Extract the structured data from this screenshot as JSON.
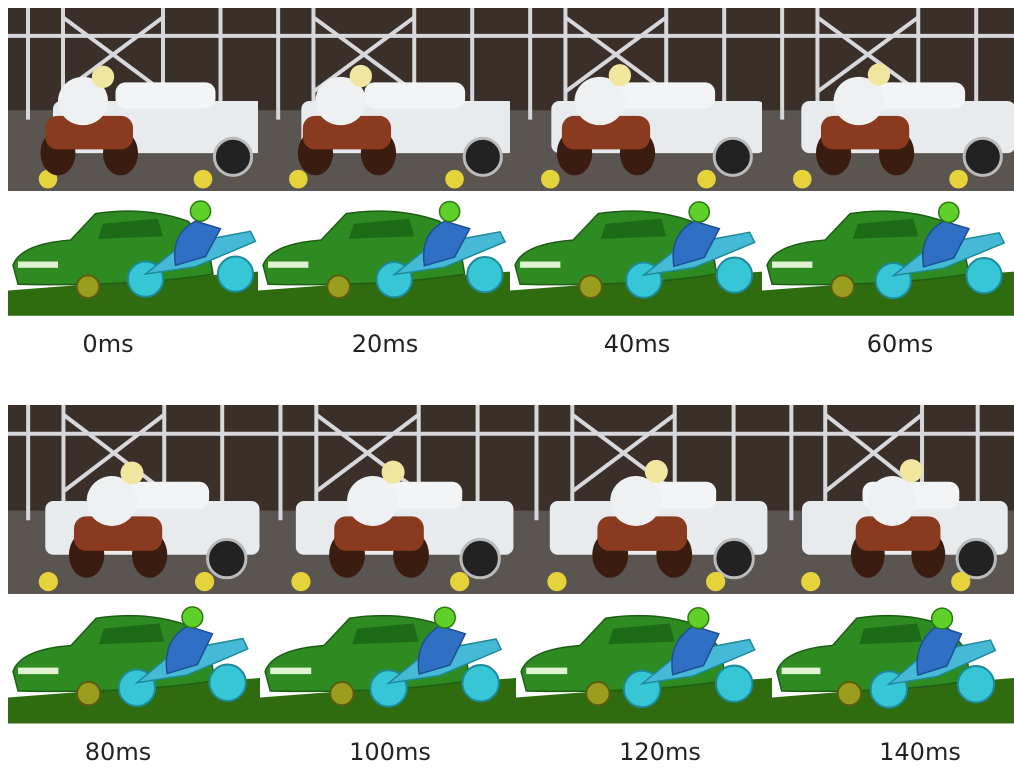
{
  "frames": [
    {
      "time_label": "0ms",
      "bike_offset": 0
    },
    {
      "time_label": "20ms",
      "bike_offset": 0.08
    },
    {
      "time_label": "40ms",
      "bike_offset": 0.16
    },
    {
      "time_label": "60ms",
      "bike_offset": 0.24
    },
    {
      "time_label": "80ms",
      "bike_offset": 0.32
    },
    {
      "time_label": "100ms",
      "bike_offset": 0.4
    },
    {
      "time_label": "120ms",
      "bike_offset": 0.48
    },
    {
      "time_label": "140ms",
      "bike_offset": 0.56
    }
  ],
  "colors": {
    "car_green": "#2e8b22",
    "ground_green": "#2f6b0f",
    "bike_cyan": "#37c6d6",
    "rider_blue": "#2f6fc4",
    "head_green": "#5fd02a",
    "photo_car_white": "#e8ebee",
    "photo_bike_red": "#8a3a1e"
  }
}
